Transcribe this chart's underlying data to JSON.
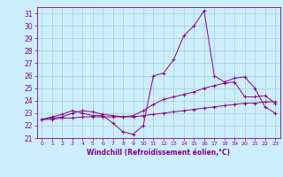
{
  "xlabel": "Windchill (Refroidissement éolien,°C)",
  "bg_color": "#cceeff",
  "line_color": "#880088",
  "grid_color": "#aacccc",
  "x_values": [
    0,
    1,
    2,
    3,
    4,
    5,
    6,
    7,
    8,
    9,
    10,
    11,
    12,
    13,
    14,
    15,
    16,
    17,
    18,
    19,
    20,
    21,
    22,
    23
  ],
  "line1": [
    22.5,
    22.7,
    22.9,
    23.2,
    23.0,
    22.8,
    22.8,
    22.2,
    21.5,
    21.3,
    22.0,
    26.0,
    26.2,
    27.3,
    29.2,
    30.0,
    31.2,
    26.0,
    25.5,
    25.8,
    25.9,
    25.0,
    23.5,
    23.0
  ],
  "line2": [
    22.5,
    22.6,
    22.7,
    23.0,
    23.2,
    23.1,
    22.9,
    22.8,
    22.7,
    22.8,
    23.2,
    23.7,
    24.1,
    24.3,
    24.5,
    24.7,
    25.0,
    25.2,
    25.4,
    25.5,
    24.3,
    24.3,
    24.4,
    23.8
  ],
  "line3": [
    22.5,
    22.5,
    22.6,
    22.6,
    22.7,
    22.7,
    22.7,
    22.7,
    22.7,
    22.7,
    22.8,
    22.9,
    23.0,
    23.1,
    23.2,
    23.3,
    23.4,
    23.5,
    23.6,
    23.7,
    23.8,
    23.8,
    23.9,
    23.9
  ],
  "ylim": [
    21,
    31.5
  ],
  "xlim": [
    -0.5,
    23.5
  ],
  "yticks": [
    21,
    22,
    23,
    24,
    25,
    26,
    27,
    28,
    29,
    30,
    31
  ],
  "xticks": [
    0,
    1,
    2,
    3,
    4,
    5,
    6,
    7,
    8,
    9,
    10,
    11,
    12,
    13,
    14,
    15,
    16,
    17,
    18,
    19,
    20,
    21,
    22,
    23
  ]
}
